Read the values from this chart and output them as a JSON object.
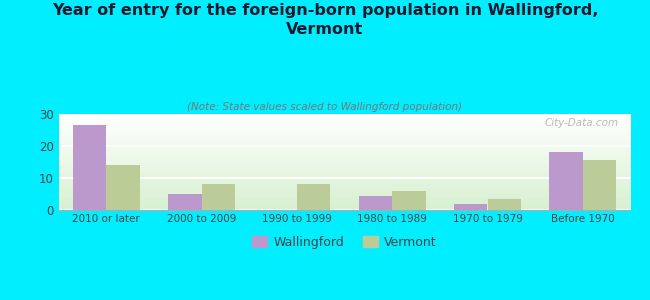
{
  "title": "Year of entry for the foreign-born population in Wallingford,\nVermont",
  "subtitle": "(Note: State values scaled to Wallingford population)",
  "categories": [
    "2010 or later",
    "2000 to 2009",
    "1990 to 1999",
    "1980 to 1989",
    "1970 to 1979",
    "Before 1970"
  ],
  "wallingford_values": [
    26.5,
    5.0,
    0,
    4.5,
    2.0,
    18.0
  ],
  "vermont_values": [
    14.0,
    8.0,
    8.0,
    6.0,
    3.5,
    15.5
  ],
  "wallingford_color": "#bb99cc",
  "vermont_color": "#bbcc99",
  "background_color": "#00eeff",
  "ylim": [
    0,
    30
  ],
  "yticks": [
    0,
    10,
    20,
    30
  ],
  "bar_width": 0.35,
  "watermark": "City-Data.com"
}
